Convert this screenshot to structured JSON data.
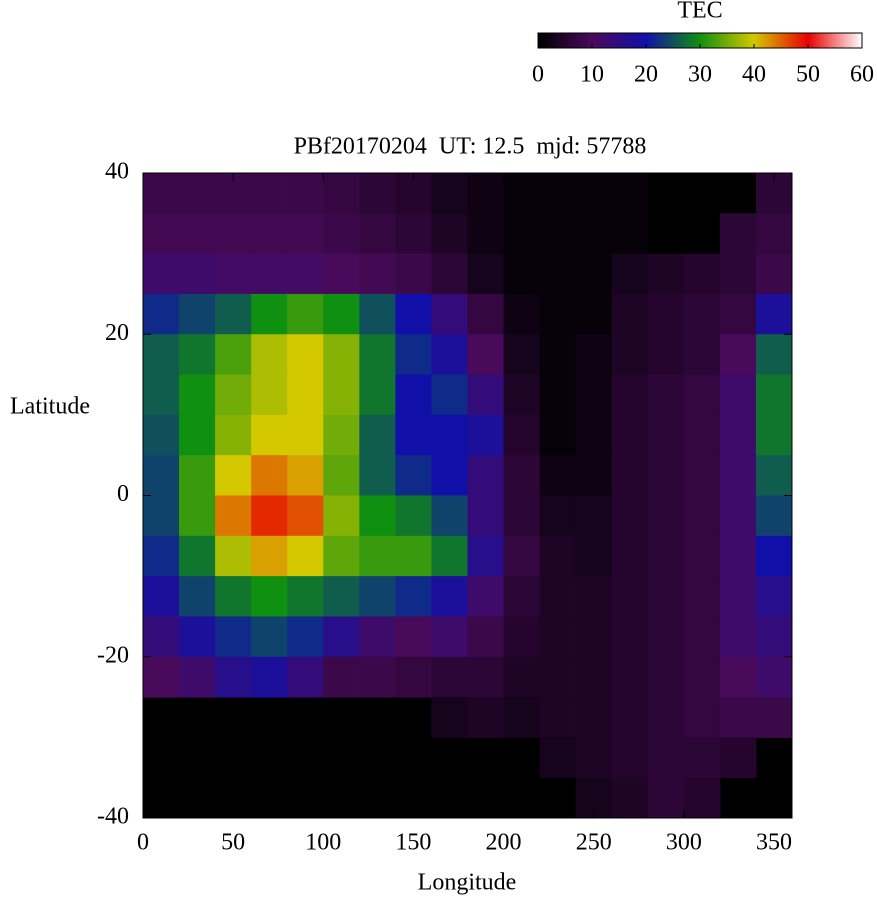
{
  "chart_data": {
    "type": "heatmap",
    "title": "PBf20170204  UT: 12.5  mjd: 57788",
    "xlabel": "Longitude",
    "ylabel": "Latitude",
    "xlim": [
      0,
      360
    ],
    "ylim": [
      -40,
      40
    ],
    "xticks": [
      0,
      50,
      100,
      150,
      200,
      250,
      300,
      350
    ],
    "yticks": [
      -40,
      -20,
      0,
      20,
      40
    ],
    "xbins": [
      0,
      20,
      40,
      60,
      80,
      100,
      120,
      140,
      160,
      180,
      200,
      220,
      240,
      260,
      280,
      300,
      320,
      340,
      360
    ],
    "ybins": [
      40,
      35,
      30,
      25,
      20,
      15,
      10,
      5,
      0,
      -5,
      -10,
      -15,
      -20,
      -25,
      -30,
      -35,
      -40
    ],
    "z": [
      [
        8,
        8,
        8,
        8,
        8,
        7,
        6,
        5,
        3,
        2,
        1,
        1,
        1,
        1,
        null,
        null,
        null,
        6
      ],
      [
        9,
        9,
        9,
        9,
        9,
        8,
        7,
        6,
        4,
        2,
        1,
        1,
        1,
        1,
        null,
        null,
        6,
        7
      ],
      [
        12,
        12,
        11,
        11,
        11,
        10,
        9,
        8,
        6,
        3,
        1,
        1,
        1,
        3,
        4,
        5,
        6,
        8
      ],
      [
        22,
        24,
        26,
        30,
        32,
        30,
        25,
        20,
        14,
        7,
        2,
        1,
        1,
        4,
        5,
        6,
        7,
        18
      ],
      [
        26,
        28,
        33,
        38,
        40,
        36,
        28,
        22,
        18,
        10,
        3,
        1,
        2,
        4,
        5,
        6,
        10,
        26
      ],
      [
        26,
        30,
        35,
        38,
        40,
        36,
        28,
        20,
        22,
        14,
        4,
        1,
        2,
        5,
        6,
        7,
        12,
        28
      ],
      [
        25,
        30,
        36,
        40,
        40,
        35,
        26,
        20,
        20,
        18,
        5,
        1,
        2,
        5,
        6,
        7,
        12,
        28
      ],
      [
        24,
        32,
        40,
        44,
        42,
        34,
        26,
        22,
        20,
        14,
        6,
        2,
        2,
        5,
        6,
        7,
        12,
        26
      ],
      [
        24,
        32,
        44,
        48,
        46,
        36,
        30,
        28,
        24,
        14,
        6,
        3,
        3,
        5,
        6,
        7,
        12,
        24
      ],
      [
        22,
        28,
        38,
        42,
        40,
        34,
        32,
        32,
        28,
        16,
        7,
        4,
        3,
        5,
        6,
        7,
        12,
        20
      ],
      [
        18,
        24,
        28,
        30,
        28,
        26,
        24,
        22,
        18,
        12,
        6,
        4,
        4,
        5,
        6,
        7,
        12,
        16
      ],
      [
        14,
        18,
        22,
        24,
        22,
        16,
        12,
        10,
        12,
        8,
        5,
        4,
        4,
        5,
        6,
        7,
        12,
        14
      ],
      [
        10,
        12,
        16,
        18,
        14,
        8,
        8,
        7,
        6,
        6,
        4,
        4,
        4,
        5,
        6,
        7,
        10,
        12
      ],
      [
        null,
        null,
        null,
        null,
        null,
        null,
        null,
        null,
        3,
        4,
        3,
        4,
        4,
        5,
        6,
        7,
        8,
        8
      ],
      [
        null,
        null,
        null,
        null,
        null,
        null,
        null,
        null,
        null,
        null,
        null,
        3,
        4,
        5,
        6,
        6,
        5,
        null
      ],
      [
        null,
        null,
        null,
        null,
        null,
        null,
        null,
        null,
        null,
        null,
        null,
        null,
        3,
        4,
        6,
        5,
        null,
        null
      ]
    ],
    "colorbar_label": "TEC",
    "clim": [
      0,
      60
    ],
    "cticks": [
      0,
      10,
      20,
      30,
      40,
      50,
      60
    ],
    "colormap": [
      "#000000",
      "#4a0a5c",
      "#1010a8",
      "#109010",
      "#d4c800",
      "#e80000",
      "#ffffff"
    ]
  }
}
